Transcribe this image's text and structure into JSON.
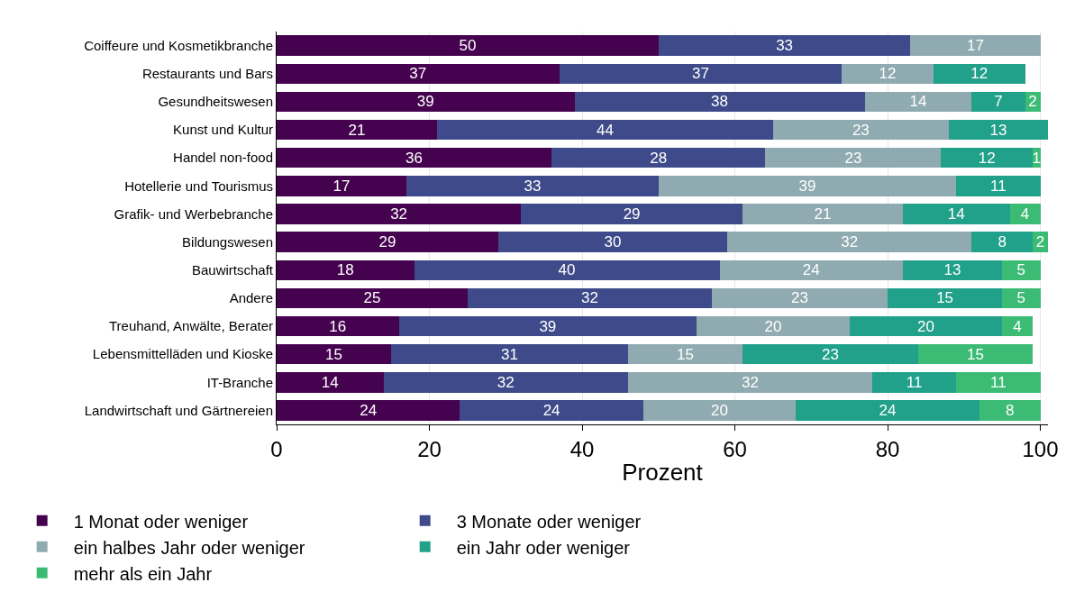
{
  "chart_data": {
    "type": "bar",
    "orientation": "horizontal",
    "stacked": true,
    "data_labels": true,
    "categories": [
      "Coiffeure und Kosmetikbranche",
      "Restaurants und Bars",
      "Gesundheitswesen",
      "Kunst und Kultur",
      "Handel non-food",
      "Hotellerie und Tourismus",
      "Grafik- und Werbebranche",
      "Bildungswesen",
      "Bauwirtschaft",
      "Andere",
      "Treuhand, Anwälte, Berater",
      "Lebensmittelläden und Kioske",
      "IT-Branche",
      "Landwirtschaft und Gärtnereien"
    ],
    "series": [
      {
        "name": "1 Monat oder weniger",
        "color": "#45034f",
        "values": [
          50,
          37,
          39,
          21,
          36,
          17,
          32,
          29,
          18,
          25,
          16,
          15,
          14,
          24
        ]
      },
      {
        "name": "3 Monate oder weniger",
        "color": "#3e4a89",
        "values": [
          33,
          37,
          38,
          44,
          28,
          33,
          29,
          30,
          40,
          32,
          39,
          31,
          32,
          24
        ]
      },
      {
        "name": "ein halbes Jahr oder weniger",
        "color": "#8faab0",
        "values": [
          17,
          12,
          14,
          23,
          23,
          39,
          21,
          32,
          24,
          23,
          20,
          15,
          32,
          20
        ]
      },
      {
        "name": "ein Jahr oder weniger",
        "color": "#21a08a",
        "values": [
          null,
          12,
          7,
          13,
          12,
          11,
          14,
          8,
          13,
          15,
          20,
          23,
          11,
          24
        ]
      },
      {
        "name": "mehr als ein Jahr",
        "color": "#3cbb75",
        "values": [
          null,
          null,
          2,
          null,
          1,
          null,
          4,
          2,
          5,
          5,
          4,
          15,
          11,
          8
        ]
      }
    ],
    "xlabel": "Prozent",
    "xlim": [
      0,
      101
    ],
    "xticks": [
      0,
      20,
      40,
      60,
      80,
      100
    ],
    "grid": "x",
    "legend": "bottom"
  }
}
